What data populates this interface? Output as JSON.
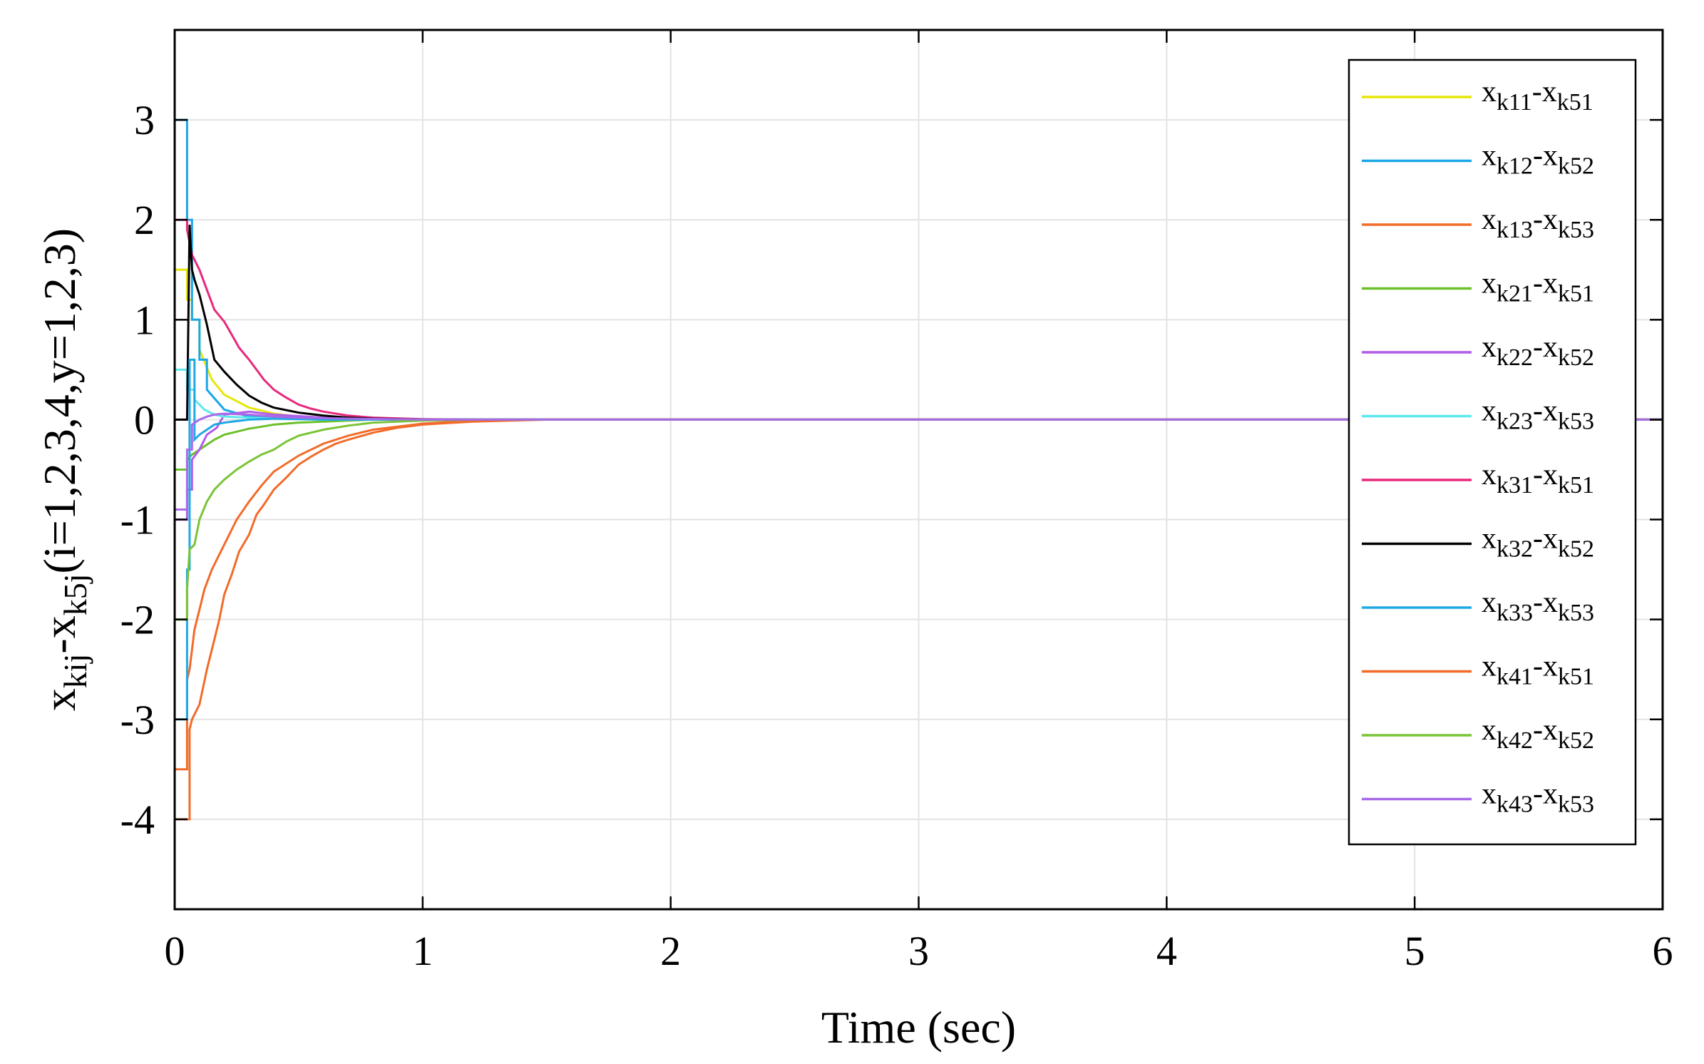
{
  "chart_data": {
    "type": "line",
    "title": "",
    "xlabel": "Time (sec)",
    "ylabel": {
      "x": "x",
      "sub1": "kij",
      "dash": "-x",
      "sub2": "k5j",
      "rest": "(i=1,2,3,4,y=1,2,3)"
    },
    "xlim": [
      0,
      6
    ],
    "ylim": [
      -4.9,
      3.9
    ],
    "xticks": [
      "0",
      "1",
      "2",
      "3",
      "4",
      "5",
      "6"
    ],
    "yticks": [
      "3",
      "2",
      "1",
      "0",
      "-1",
      "-2",
      "-3",
      "-4"
    ],
    "grid": true,
    "legend_position": "top-right",
    "series": [
      {
        "name": "x_{k11}-x_{k51}",
        "label": "x",
        "s1": "k11",
        "mid": "-x",
        "s2": "k51",
        "color": "#e6e60a",
        "x": [
          0,
          0.05,
          0.05,
          0.07,
          0.07,
          0.1,
          0.1,
          0.15,
          0.2,
          0.3,
          0.4,
          0.5,
          0.7,
          1.0,
          6
        ],
        "y": [
          1.5,
          1.5,
          1.2,
          1.2,
          1.0,
          1.0,
          0.7,
          0.4,
          0.25,
          0.12,
          0.06,
          0.03,
          0.01,
          0,
          0
        ]
      },
      {
        "name": "x_{k12}-x_{k52}",
        "label": "x",
        "s1": "k12",
        "mid": "-x",
        "s2": "k52",
        "color": "#1aa6e8",
        "x": [
          0,
          0.05,
          0.05,
          0.07,
          0.07,
          0.1,
          0.1,
          0.13,
          0.13,
          0.2,
          0.3,
          0.5,
          0.8,
          1.0,
          6
        ],
        "y": [
          3.0,
          3.0,
          2.0,
          2.0,
          1.0,
          1.0,
          0.6,
          0.6,
          0.3,
          0.1,
          0.03,
          0.01,
          0,
          0,
          0
        ]
      },
      {
        "name": "x_{k13}-x_{k53}",
        "label": "x",
        "s1": "k13",
        "mid": "-x",
        "s2": "k53",
        "color": "#f26b2a",
        "x": [
          0,
          0.05,
          0.05,
          0.06,
          0.08,
          0.1,
          0.12,
          0.15,
          0.2,
          0.25,
          0.3,
          0.35,
          0.4,
          0.5,
          0.6,
          0.7,
          0.8,
          0.9,
          1.0,
          1.2,
          1.5,
          6
        ],
        "y": [
          -3.5,
          -3.5,
          -2.6,
          -2.5,
          -2.1,
          -1.9,
          -1.7,
          -1.5,
          -1.25,
          -1.0,
          -0.82,
          -0.66,
          -0.52,
          -0.36,
          -0.24,
          -0.16,
          -0.1,
          -0.07,
          -0.04,
          -0.01,
          0,
          0
        ]
      },
      {
        "name": "x_{k21}-x_{k51}",
        "label": "x",
        "s1": "k21",
        "mid": "-x",
        "s2": "k51",
        "color": "#6cc02c",
        "x": [
          0,
          0.05,
          0.05,
          0.07,
          0.1,
          0.13,
          0.16,
          0.2,
          0.25,
          0.3,
          0.35,
          0.4,
          0.5,
          0.6,
          0.7,
          0.8,
          1.0,
          6
        ],
        "y": [
          -0.5,
          -0.5,
          -0.4,
          -0.35,
          -0.3,
          -0.25,
          -0.2,
          -0.15,
          -0.12,
          -0.09,
          -0.07,
          -0.05,
          -0.03,
          -0.02,
          -0.01,
          0,
          0,
          0
        ]
      },
      {
        "name": "x_{k22}-x_{k52}",
        "label": "x",
        "s1": "k22",
        "mid": "-x",
        "s2": "k52",
        "color": "#b05ce8",
        "x": [
          0,
          0.05,
          0.05,
          0.07,
          0.07,
          0.1,
          0.13,
          0.17,
          0.2,
          0.3,
          0.4,
          0.6,
          1.0,
          6
        ],
        "y": [
          -1.0,
          -1.0,
          -0.7,
          -0.7,
          -0.4,
          -0.3,
          -0.15,
          -0.08,
          0.05,
          0.08,
          0.05,
          0.02,
          0,
          0
        ]
      },
      {
        "name": "x_{k23}-x_{k53}",
        "label": "x",
        "s1": "k23",
        "mid": "-x",
        "s2": "k53",
        "color": "#5ee8ee",
        "x": [
          0,
          0.05,
          0.05,
          0.08,
          0.08,
          0.12,
          0.16,
          0.2,
          0.3,
          0.4,
          0.6,
          1.0,
          6
        ],
        "y": [
          0.5,
          0.5,
          0.3,
          0.3,
          0.2,
          0.1,
          0.05,
          0.03,
          0.02,
          0.01,
          0,
          0,
          0
        ]
      },
      {
        "name": "x_{k31}-x_{k51}",
        "label": "x",
        "s1": "k31",
        "mid": "-x",
        "s2": "k51",
        "color": "#e8287c",
        "x": [
          0,
          0.05,
          0.05,
          0.07,
          0.1,
          0.13,
          0.16,
          0.2,
          0.23,
          0.26,
          0.3,
          0.33,
          0.36,
          0.4,
          0.45,
          0.5,
          0.55,
          0.6,
          0.7,
          0.8,
          1.0,
          1.2,
          6
        ],
        "y": [
          2.0,
          2.0,
          1.9,
          1.65,
          1.5,
          1.3,
          1.1,
          0.98,
          0.85,
          0.72,
          0.6,
          0.5,
          0.4,
          0.3,
          0.22,
          0.15,
          0.11,
          0.08,
          0.04,
          0.02,
          0.005,
          0,
          0
        ]
      },
      {
        "name": "x_{k32}-x_{k52}",
        "label": "x",
        "s1": "k32",
        "mid": "-x",
        "s2": "k52",
        "color": "#000000",
        "x": [
          0,
          0.05,
          0.06,
          0.07,
          0.08,
          0.1,
          0.13,
          0.16,
          0.2,
          0.25,
          0.3,
          0.35,
          0.4,
          0.5,
          0.6,
          0.7,
          0.8,
          1.0,
          1.2,
          6
        ],
        "y": [
          0,
          0,
          1.95,
          1.5,
          1.4,
          1.25,
          0.95,
          0.6,
          0.48,
          0.35,
          0.24,
          0.17,
          0.12,
          0.07,
          0.04,
          0.02,
          0.01,
          0,
          0,
          0
        ]
      },
      {
        "name": "x_{k33}-x_{k53}",
        "label": "x",
        "s1": "k33",
        "mid": "-x",
        "s2": "k53",
        "color": "#1fa8e4",
        "x": [
          0,
          0.05,
          0.05,
          0.06,
          0.06,
          0.08,
          0.08,
          0.1,
          0.13,
          0.16,
          0.2,
          0.3,
          0.4,
          0.6,
          1.0,
          6
        ],
        "y": [
          -3.0,
          -3.0,
          -1.5,
          -1.5,
          0.6,
          0.6,
          -0.2,
          -0.15,
          -0.1,
          -0.05,
          -0.03,
          0,
          0.01,
          0,
          0,
          0
        ]
      },
      {
        "name": "x_{k41}-x_{k51}",
        "label": "x",
        "s1": "k41",
        "mid": "-x",
        "s2": "k51",
        "color": "#f26b2a",
        "x": [
          0,
          0.06,
          0.06,
          0.07,
          0.08,
          0.1,
          0.13,
          0.16,
          0.18,
          0.2,
          0.23,
          0.26,
          0.3,
          0.33,
          0.36,
          0.4,
          0.45,
          0.5,
          0.55,
          0.6,
          0.65,
          0.7,
          0.8,
          0.9,
          1.0,
          1.2,
          1.5,
          6
        ],
        "y": [
          -4.0,
          -4.0,
          -3.1,
          -3.0,
          -2.95,
          -2.85,
          -2.5,
          -2.2,
          -2.0,
          -1.75,
          -1.55,
          -1.32,
          -1.15,
          -0.95,
          -0.85,
          -0.7,
          -0.58,
          -0.45,
          -0.37,
          -0.3,
          -0.24,
          -0.2,
          -0.13,
          -0.08,
          -0.05,
          -0.02,
          0,
          0
        ]
      },
      {
        "name": "x_{k42}-x_{k52}",
        "label": "x",
        "s1": "k42",
        "mid": "-x",
        "s2": "k52",
        "color": "#7ac436",
        "x": [
          0,
          0.05,
          0.05,
          0.06,
          0.08,
          0.1,
          0.13,
          0.16,
          0.2,
          0.25,
          0.3,
          0.35,
          0.4,
          0.45,
          0.5,
          0.6,
          0.7,
          0.8,
          1.0,
          1.2,
          6
        ],
        "y": [
          -2.0,
          -2.0,
          -1.7,
          -1.3,
          -1.25,
          -1.0,
          -0.82,
          -0.7,
          -0.6,
          -0.5,
          -0.42,
          -0.35,
          -0.3,
          -0.22,
          -0.16,
          -0.1,
          -0.06,
          -0.03,
          -0.01,
          0,
          0
        ]
      },
      {
        "name": "x_{k43}-x_{k53}",
        "label": "x",
        "s1": "k43",
        "mid": "-x",
        "s2": "k53",
        "color": "#a86ae8",
        "x": [
          0,
          0.05,
          0.05,
          0.07,
          0.07,
          0.1,
          0.13,
          0.16,
          0.2,
          0.3,
          0.4,
          0.5,
          0.7,
          1.0,
          6
        ],
        "y": [
          -0.9,
          -0.9,
          -0.3,
          -0.3,
          -0.05,
          0.0,
          0.03,
          0.05,
          0.06,
          0.05,
          0.03,
          0.02,
          0.01,
          0,
          0
        ]
      }
    ]
  }
}
